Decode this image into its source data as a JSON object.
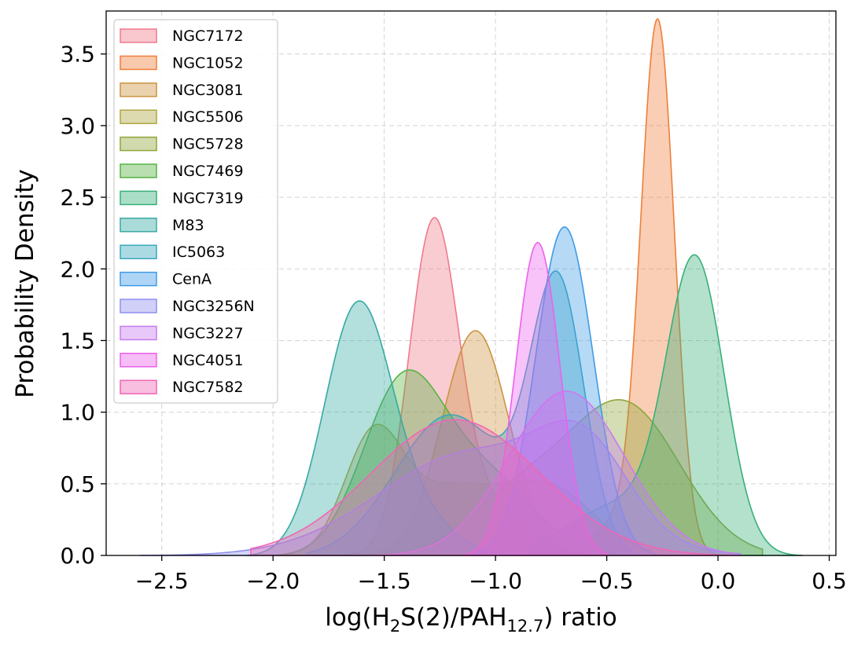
{
  "chart_data": {
    "type": "area",
    "subtype": "kde-density",
    "title": "",
    "xlabel": {
      "prefix": "log(H",
      "sub1": "2",
      "mid": "S(2)/PAH",
      "sub2": "12.7",
      "suffix": ") ratio"
    },
    "ylabel": "Probability Density",
    "xlim": [
      -2.75,
      0.53
    ],
    "ylim": [
      0,
      3.8
    ],
    "xticks": [
      -2.5,
      -2.0,
      -1.5,
      -1.0,
      -0.5,
      0.0,
      0.5
    ],
    "xtick_labels": [
      "−2.5",
      "−2.0",
      "−1.5",
      "−1.0",
      "−0.5",
      "0.0",
      "0.5"
    ],
    "yticks": [
      0.0,
      0.5,
      1.0,
      1.5,
      2.0,
      2.5,
      3.0,
      3.5
    ],
    "ytick_labels": [
      "0.0",
      "0.5",
      "1.0",
      "1.5",
      "2.0",
      "2.5",
      "3.0",
      "3.5"
    ],
    "grid": true,
    "legend_position": "upper-left",
    "series": [
      {
        "name": "NGC7172",
        "color": "#f07a8a",
        "components": [
          {
            "mu": -1.28,
            "sigma": 0.11,
            "amp": 2.2
          },
          {
            "mu": -1.05,
            "sigma": 0.18,
            "amp": 0.35
          }
        ],
        "range": [
          -1.95,
          -0.6
        ]
      },
      {
        "name": "NGC1052",
        "color": "#ee7f3a",
        "components": [
          {
            "mu": -0.27,
            "sigma": 0.075,
            "amp": 3.63
          },
          {
            "mu": -0.42,
            "sigma": 0.12,
            "amp": 0.25
          }
        ],
        "range": [
          -0.65,
          0.05
        ]
      },
      {
        "name": "NGC3081",
        "color": "#cc9440",
        "components": [
          {
            "mu": -1.09,
            "sigma": 0.15,
            "amp": 1.57
          }
        ],
        "range": [
          -1.65,
          -0.55
        ]
      },
      {
        "name": "NGC5506",
        "color": "#b0a640",
        "components": [
          {
            "mu": -1.55,
            "sigma": 0.13,
            "amp": 0.78
          },
          {
            "mu": -1.2,
            "sigma": 0.22,
            "amp": 0.45
          },
          {
            "mu": -0.75,
            "sigma": 0.2,
            "amp": 0.45
          }
        ],
        "range": [
          -2.0,
          -0.3
        ]
      },
      {
        "name": "NGC5728",
        "color": "#8fa63a",
        "components": [
          {
            "mu": -0.42,
            "sigma": 0.25,
            "amp": 1.05
          },
          {
            "mu": -0.9,
            "sigma": 0.22,
            "amp": 0.4
          }
        ],
        "range": [
          -1.55,
          0.2
        ]
      },
      {
        "name": "NGC7469",
        "color": "#57b342",
        "components": [
          {
            "mu": -1.42,
            "sigma": 0.18,
            "amp": 1.15
          },
          {
            "mu": -1.05,
            "sigma": 0.22,
            "amp": 0.55
          }
        ],
        "range": [
          -2.0,
          -0.45
        ]
      },
      {
        "name": "NGC7319",
        "color": "#37b07a",
        "components": [
          {
            "mu": -0.1,
            "sigma": 0.13,
            "amp": 2.0
          },
          {
            "mu": -0.45,
            "sigma": 0.22,
            "amp": 0.35
          }
        ],
        "range": [
          -0.85,
          0.38
        ]
      },
      {
        "name": "M83",
        "color": "#36aaa3",
        "components": [
          {
            "mu": -1.62,
            "sigma": 0.15,
            "amp": 1.72
          },
          {
            "mu": -1.35,
            "sigma": 0.16,
            "amp": 0.25
          }
        ],
        "range": [
          -2.12,
          -1.0
        ]
      },
      {
        "name": "IC5063",
        "color": "#3aa7bd",
        "components": [
          {
            "mu": -0.72,
            "sigma": 0.12,
            "amp": 1.84
          },
          {
            "mu": -1.2,
            "sigma": 0.25,
            "amp": 1.0
          }
        ],
        "range": [
          -1.85,
          -0.35
        ]
      },
      {
        "name": "CenA",
        "color": "#3e9be6",
        "components": [
          {
            "mu": -0.69,
            "sigma": 0.13,
            "amp": 2.3
          }
        ],
        "range": [
          -1.1,
          -0.25
        ]
      },
      {
        "name": "NGC3256N",
        "color": "#8f8ff0",
        "components": [
          {
            "mu": -1.1,
            "sigma": 0.42,
            "amp": 0.72
          },
          {
            "mu": -0.6,
            "sigma": 0.2,
            "amp": 0.55
          }
        ],
        "range": [
          -2.6,
          0.1
        ]
      },
      {
        "name": "NGC3227",
        "color": "#c77cf0",
        "components": [
          {
            "mu": -0.68,
            "sigma": 0.26,
            "amp": 1.15
          }
        ],
        "range": [
          -1.55,
          0.1
        ]
      },
      {
        "name": "NGC4051",
        "color": "#eb62ec",
        "components": [
          {
            "mu": -0.81,
            "sigma": 0.1,
            "amp": 2.19
          }
        ],
        "range": [
          -1.15,
          -0.5
        ]
      },
      {
        "name": "NGC7582",
        "color": "#f066b4",
        "components": [
          {
            "mu": -1.18,
            "sigma": 0.38,
            "amp": 0.95
          }
        ],
        "range": [
          -2.1,
          0.1
        ]
      }
    ]
  }
}
